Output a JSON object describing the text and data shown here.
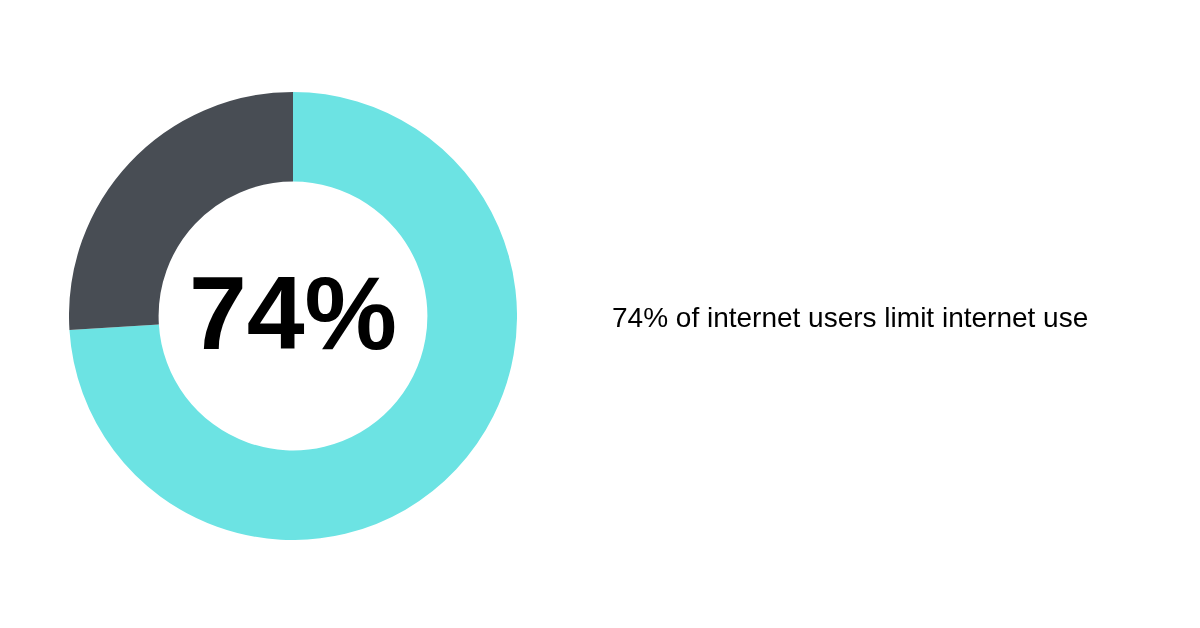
{
  "chart_data": {
    "type": "donut",
    "categories": [
      null,
      null
    ],
    "values": [
      74,
      26
    ],
    "colors": [
      "#6ce3e3",
      "#484d54"
    ],
    "value_labels": [
      "74%",
      null
    ],
    "legend": false,
    "annotations": [
      "74% of internet users limit internet use"
    ]
  }
}
